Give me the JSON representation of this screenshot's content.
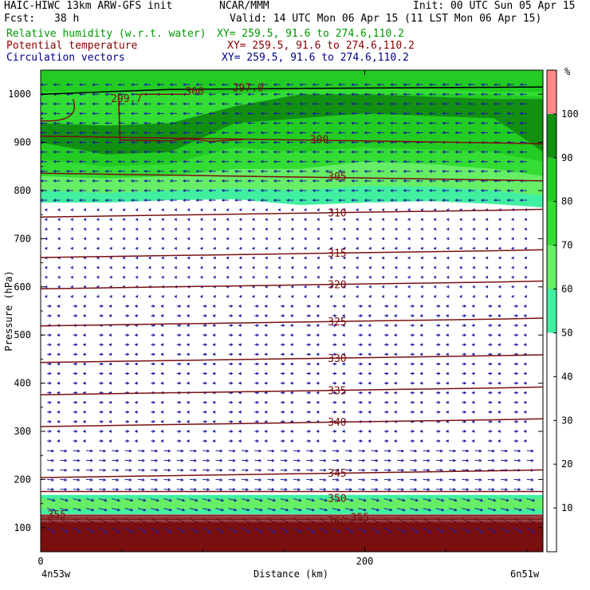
{
  "header": {
    "model": "HAIC-HIWC 13km ARW-GFS init",
    "org": "NCAR/MMM",
    "init": "Init: 00 UTC Sun 05 Apr 15",
    "fcst_label": "Fcst:",
    "fcst_value": "38 h",
    "valid": "Valid: 14 UTC Mon 06 Apr 15 (11 LST Mon 06 Apr 15)",
    "fields": [
      {
        "name": "Relative humidity (w.r.t. water)",
        "xy": "XY= 259.5, 91.6 to 274.6,110.2",
        "color": "#009900"
      },
      {
        "name": "Potential temperature",
        "xy": "XY= 259.5, 91.6 to 274.6,110.2",
        "color": "#880000"
      },
      {
        "name": "Circulation vectors",
        "xy": "XY= 259.5, 91.6 to 274.6,110.2",
        "color": "#000088"
      }
    ]
  },
  "colors": {
    "theta": "#7a0f0f",
    "vector": "#1a1aa0",
    "rh_50": "#40f0a0",
    "rh_60": "#66ee66",
    "rh_70": "#33dd33",
    "rh_80": "#22cc22",
    "rh_90": "#129012",
    "rh_100": "#006600",
    "rh_top": "#ff8888"
  },
  "chart_data": {
    "type": "contour-cross-section",
    "ylabel": "Pressure (hPa)",
    "xlabel": "Distance (km)",
    "x_ticks": [
      0,
      200
    ],
    "xlim": [
      0,
      310
    ],
    "y_ticks": [
      100,
      200,
      300,
      400,
      500,
      600,
      700,
      800,
      900,
      1000
    ],
    "ylim": [
      1050,
      50
    ],
    "endpoints": {
      "left": "4n53w",
      "right": "6n51w"
    },
    "colorbar": {
      "unit": "%",
      "ticks": [
        10,
        20,
        30,
        40,
        50,
        60,
        70,
        80,
        90,
        100
      ],
      "bands": [
        {
          "from": 0,
          "to": 50,
          "color": "#ffffff"
        },
        {
          "from": 50,
          "to": 60,
          "color": "#40f0a0"
        },
        {
          "from": 60,
          "to": 70,
          "color": "#66ee66"
        },
        {
          "from": 70,
          "to": 80,
          "color": "#33dd33"
        },
        {
          "from": 80,
          "to": 90,
          "color": "#22cc22"
        },
        {
          "from": 90,
          "to": 100,
          "color": "#129012"
        },
        {
          "from": 100,
          "to": 110,
          "color": "#ff8888"
        }
      ]
    },
    "theta_contours": [
      {
        "value": 345,
        "p": 212
      },
      {
        "value": 340,
        "p": 318
      },
      {
        "value": 335,
        "p": 384
      },
      {
        "value": 330,
        "p": 451
      },
      {
        "value": 325,
        "p": 527
      },
      {
        "value": 320,
        "p": 604
      },
      {
        "value": 315,
        "p": 669
      },
      {
        "value": 310,
        "p": 753
      },
      {
        "value": 305,
        "p": 828
      },
      {
        "value": 300,
        "p": 905
      }
    ],
    "theta_labels": [
      {
        "text": "360",
        "x": 183,
        "p": 112
      },
      {
        "text": "355",
        "x": 197,
        "p": 120
      },
      {
        "text": "355",
        "x": 10,
        "p": 126
      },
      {
        "text": "350",
        "x": 183,
        "p": 160
      },
      {
        "text": "345",
        "x": 183,
        "p": 212
      },
      {
        "text": "340",
        "x": 183,
        "p": 318
      },
      {
        "text": "335",
        "x": 183,
        "p": 384
      },
      {
        "text": "330",
        "x": 183,
        "p": 451
      },
      {
        "text": "325",
        "x": 183,
        "p": 527
      },
      {
        "text": "320",
        "x": 183,
        "p": 604
      },
      {
        "text": "315",
        "x": 183,
        "p": 669
      },
      {
        "text": "310",
        "x": 183,
        "p": 753
      },
      {
        "text": "305",
        "x": 183,
        "p": 828
      },
      {
        "text": "300",
        "x": 172,
        "p": 905
      },
      {
        "text": "299.7",
        "x": 53,
        "p": 990
      },
      {
        "text": "300",
        "x": 95,
        "p": 1005
      },
      {
        "text": "297.0",
        "x": 128,
        "p": 1013
      }
    ]
  }
}
